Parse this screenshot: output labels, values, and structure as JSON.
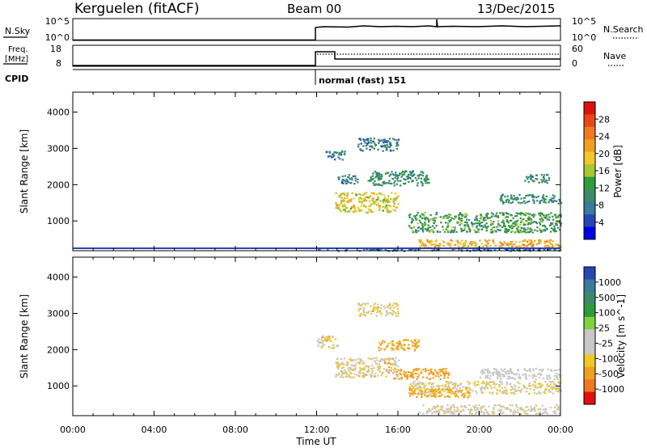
{
  "header": {
    "station": "Kerguelen (fitACF)",
    "beam": "Beam 00",
    "date": "13/Dec/2015"
  },
  "status_panels": {
    "nsky": {
      "label": "N.Sky",
      "ticks": [
        "10^5",
        "10^0"
      ],
      "right_label": "N.Search",
      "right_ticks": [
        "10^5",
        "10^0"
      ]
    },
    "freq": {
      "label_line1": "Freq.",
      "label_line2": "[MHz]",
      "ticks": [
        "18",
        "8"
      ],
      "right_label": "Nave",
      "right_ticks": [
        "60",
        "0"
      ]
    },
    "cpid": {
      "label": "CPID",
      "mode_text": "normal (fast) 151"
    }
  },
  "colors": {
    "power_scale": [
      "#0000e6",
      "#2845b4",
      "#3a7a9c",
      "#3c8a6a",
      "#2e9a3c",
      "#a8c832",
      "#f0c828",
      "#f0a020",
      "#f07820",
      "#e84818",
      "#e01010"
    ],
    "velocity_scale": [
      "#e01010",
      "#f07820",
      "#f0a020",
      "#f0c828",
      "#c8c8c8",
      "#c8c8c8",
      "#80d040",
      "#2e9a3c",
      "#3c8a6a",
      "#3a7a9c",
      "#2845b4"
    ]
  },
  "chart_data": [
    {
      "type": "heatmap",
      "name": "power",
      "xlabel": "",
      "ylabel": "Slant Range [km]",
      "x_ticks": [
        "00:00",
        "04:00",
        "08:00",
        "12:00",
        "16:00",
        "20:00",
        "00:00"
      ],
      "xlim_hours": [
        0,
        24
      ],
      "ylim": [
        180,
        4550
      ],
      "y_ticks": [
        1000,
        2000,
        3000,
        4000
      ],
      "colorbar": {
        "label": "Power [dB]",
        "ticks": [
          "28",
          "24",
          "20",
          "16",
          "12",
          "8",
          "4"
        ],
        "range": [
          0,
          30
        ]
      },
      "regions": [
        {
          "t0": 12.0,
          "t1": 24.0,
          "r0": 190,
          "r1": 260,
          "v": 5
        },
        {
          "t0": 17.0,
          "t1": 24.0,
          "r0": 260,
          "r1": 500,
          "v": 20
        },
        {
          "t0": 12.9,
          "t1": 16.0,
          "r0": 1250,
          "r1": 1800,
          "v": 17
        },
        {
          "t0": 16.5,
          "t1": 24.0,
          "r0": 700,
          "r1": 1250,
          "v": 11
        },
        {
          "t0": 14.5,
          "t1": 17.5,
          "r0": 2000,
          "r1": 2400,
          "v": 9
        },
        {
          "t0": 13.0,
          "t1": 14.0,
          "r0": 2050,
          "r1": 2300,
          "v": 7
        },
        {
          "t0": 12.4,
          "t1": 13.4,
          "r0": 2700,
          "r1": 2950,
          "v": 7
        },
        {
          "t0": 14.0,
          "t1": 16.0,
          "r0": 2950,
          "r1": 3300,
          "v": 7
        },
        {
          "t0": 22.2,
          "t1": 23.4,
          "r0": 2050,
          "r1": 2300,
          "v": 8
        },
        {
          "t0": 21.0,
          "t1": 24.0,
          "r0": 1500,
          "r1": 1750,
          "v": 9
        }
      ]
    },
    {
      "type": "heatmap",
      "name": "velocity",
      "xlabel": "Time UT",
      "ylabel": "Slant Range [km]",
      "x_ticks": [
        "00:00",
        "04:00",
        "08:00",
        "12:00",
        "16:00",
        "20:00",
        "00:00"
      ],
      "xlim_hours": [
        0,
        24
      ],
      "ylim": [
        180,
        4550
      ],
      "y_ticks": [
        1000,
        2000,
        3000,
        4000
      ],
      "colorbar": {
        "label": "Velocity [m s^-1]",
        "ticks": [
          "1000",
          "500",
          "100",
          "25",
          "-25",
          "-100",
          "-500",
          "-1000"
        ],
        "range": [
          -1000,
          1000
        ]
      },
      "regions": [
        {
          "t0": 12.9,
          "t1": 16.0,
          "r0": 1250,
          "r1": 1800,
          "v": 0
        },
        {
          "t0": 16.5,
          "t1": 24.0,
          "r0": 800,
          "r1": 1150,
          "v": 5
        },
        {
          "t0": 15.7,
          "t1": 18.5,
          "r0": 1200,
          "r1": 1500,
          "v": -70
        },
        {
          "t0": 20.0,
          "t1": 24.0,
          "r0": 1200,
          "r1": 1500,
          "v": 70
        },
        {
          "t0": 16.5,
          "t1": 19.5,
          "r0": 700,
          "r1": 950,
          "v": -40
        },
        {
          "t0": 17.0,
          "t1": 24.0,
          "r0": 250,
          "r1": 500,
          "v": 15
        },
        {
          "t0": 12.0,
          "t1": 13.0,
          "r0": 2050,
          "r1": 2400,
          "v": 0
        },
        {
          "t0": 15.0,
          "t1": 17.0,
          "r0": 2000,
          "r1": 2300,
          "v": -40
        },
        {
          "t0": 14.0,
          "t1": 16.0,
          "r0": 2950,
          "r1": 3300,
          "v": 0
        }
      ]
    }
  ]
}
